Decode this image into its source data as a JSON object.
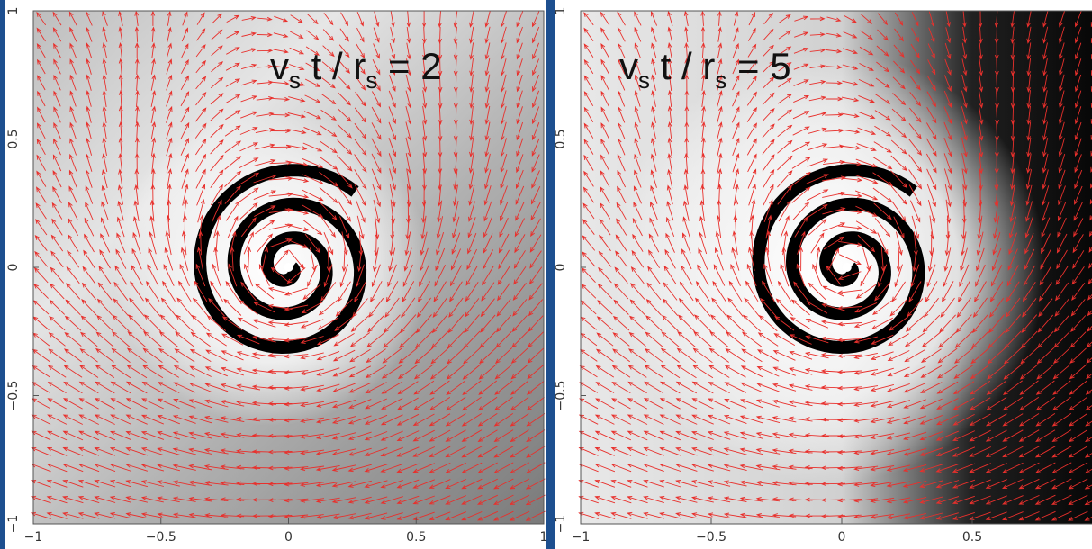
{
  "chart_data": [
    {
      "type": "field",
      "annotation": [
        {
          "text": "v"
        },
        {
          "text": "s",
          "sub": true
        },
        {
          "text": " t / r"
        },
        {
          "text": "s",
          "sub": true
        },
        {
          "text": " = 2"
        }
      ],
      "xlim": [
        -1,
        1
      ],
      "ylim": [
        -1,
        1
      ],
      "xticks": [
        {
          "value": -1,
          "label": "−1"
        },
        {
          "value": -0.5,
          "label": "−0.5"
        },
        0,
        0.5,
        1
      ],
      "yticks": [
        {
          "value": -1,
          "label": "−1"
        },
        {
          "value": -0.5,
          "label": "−0.5"
        },
        0,
        0.5,
        1
      ],
      "color": "#e8302c"
    },
    {
      "type": "field",
      "annotation": [
        {
          "text": "v"
        },
        {
          "text": "s",
          "sub": true
        },
        {
          "text": " t / r"
        },
        {
          "text": "s",
          "sub": true
        },
        {
          "text": " = 5"
        }
      ],
      "xlim": [
        -1,
        1
      ],
      "ylim": [
        -1,
        1
      ],
      "xticks": [
        {
          "value": -1,
          "label": "−1"
        },
        {
          "value": -0.5,
          "label": "−0.5"
        },
        0,
        0.5
      ],
      "yticks": [
        {
          "value": -1,
          "label": "−1"
        },
        {
          "value": -0.5,
          "label": "−0.5"
        },
        0,
        0.5,
        1
      ],
      "color": "#e8302c"
    }
  ]
}
